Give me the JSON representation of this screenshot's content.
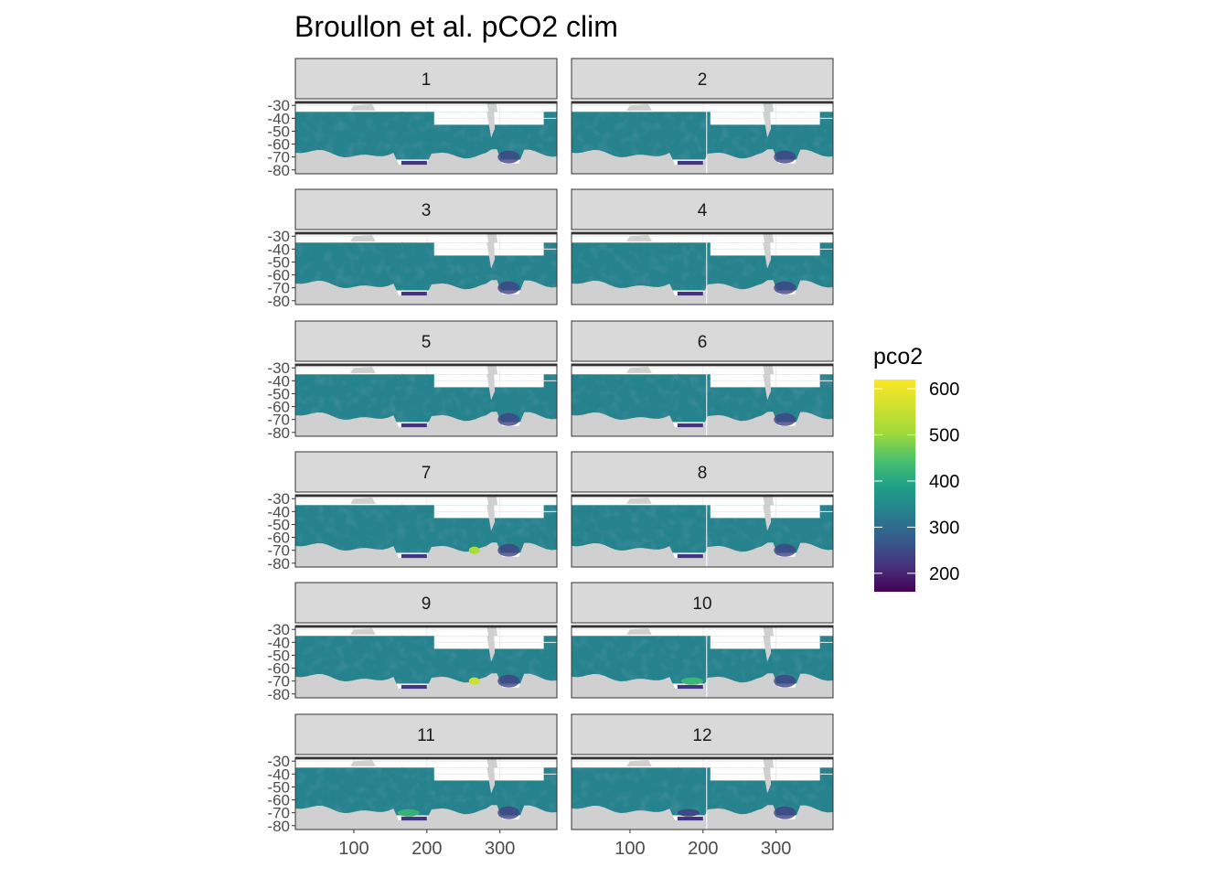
{
  "chart_data": {
    "type": "heatmap",
    "title": "Broullon et al. pCO2 clim",
    "xlabel": "",
    "ylabel": "",
    "facet_variable": "month",
    "panels": [
      "1",
      "2",
      "3",
      "4",
      "5",
      "6",
      "7",
      "8",
      "9",
      "10",
      "11",
      "12"
    ],
    "layout": {
      "ncol": 2,
      "nrow": 6
    },
    "x_ticks": [
      100,
      200,
      300
    ],
    "x_tick_labels": [
      "100",
      "200",
      "300"
    ],
    "xlim": [
      20,
      378
    ],
    "y_ticks": [
      -30,
      -40,
      -50,
      -60,
      -70,
      -80
    ],
    "y_tick_labels": [
      "-30",
      "-40",
      "-50",
      "-60",
      "-70",
      "-80"
    ],
    "ylim": [
      -83,
      -27
    ],
    "data_lat_range": [
      -72,
      -35
    ],
    "land_color": "#d0d0d0",
    "missing_region": {
      "lon": [
        210,
        360
      ],
      "lat": [
        -45,
        -35
      ]
    },
    "grid": true,
    "legend": {
      "title": "pco2",
      "placement": "right",
      "ticks": [
        600,
        500,
        400,
        300,
        200
      ],
      "tick_labels": [
        "600",
        "500",
        "400",
        "300",
        "200"
      ],
      "range": [
        160,
        620
      ],
      "colormap": "viridis",
      "colors": [
        "#440154",
        "#3b528b",
        "#21908c",
        "#5dc863",
        "#fde725"
      ]
    },
    "typical_value": 340,
    "hotspots": [
      {
        "month": 7,
        "lon": 265,
        "lat": -70,
        "value": 520
      },
      {
        "month": 9,
        "lon": 265,
        "lat": -70,
        "value": 560
      },
      {
        "month": 10,
        "lon": 185,
        "lat": -70,
        "value": 430
      },
      {
        "month": 11,
        "lon": 175,
        "lat": -70,
        "value": 420
      },
      {
        "month": 12,
        "lon": 180,
        "lat": -70,
        "value": 250
      }
    ]
  }
}
